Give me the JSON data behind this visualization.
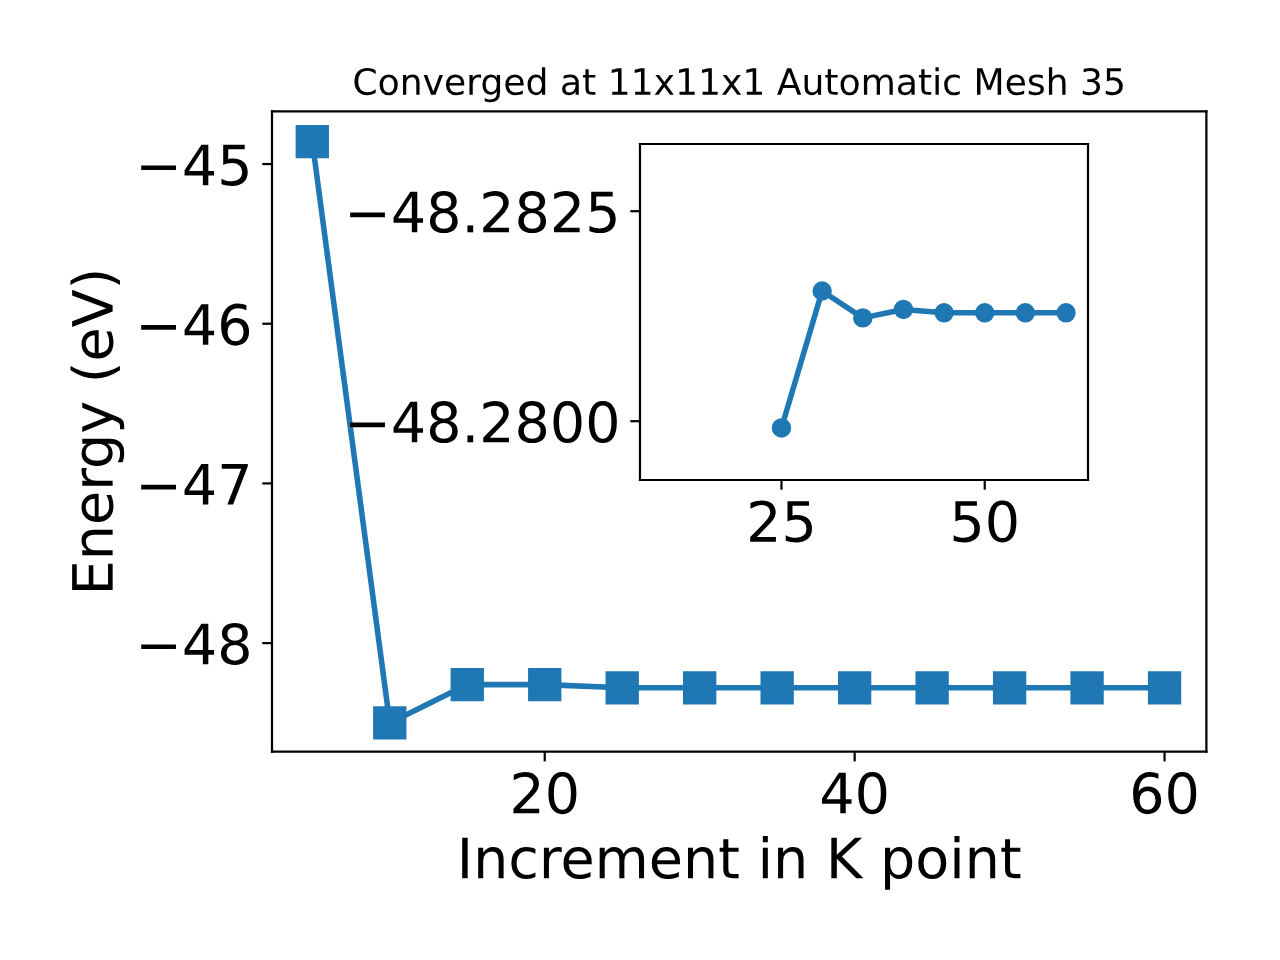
{
  "chart_data": [
    {
      "type": "line",
      "title": "Converged at 11x11x1 Automatic Mesh 35",
      "xlabel": "Increment in K point",
      "ylabel": "Energy (eV)",
      "x": [
        5,
        10,
        15,
        20,
        25,
        30,
        35,
        40,
        45,
        50,
        55,
        60
      ],
      "series": [
        {
          "color": "#1f77b4",
          "values": [
            -44.86,
            -48.5,
            -48.26,
            -48.26,
            -48.28,
            -48.28,
            -48.28,
            -48.28,
            -48.28,
            -48.28,
            -48.28,
            -48.28
          ]
        }
      ],
      "marker": "square",
      "line_style": "solid",
      "xlim": [
        2.4,
        62.7
      ],
      "ylim": [
        -48.68,
        -44.67
      ],
      "xticks": [
        20,
        40,
        60
      ],
      "yticks": [
        -48,
        -47,
        -46,
        -45
      ],
      "grid": false,
      "legend": false
    },
    {
      "type": "line",
      "x": [
        25,
        30,
        35,
        40,
        45,
        50,
        55,
        60
      ],
      "series": [
        {
          "color": "#1f77b4",
          "values": [
            -48.27992,
            -48.28155,
            -48.28123,
            -48.28133,
            -48.28129,
            -48.28129,
            -48.28129,
            -48.28129
          ]
        }
      ],
      "marker": "circle",
      "line_style": "solid",
      "xlim": [
        7.6,
        62.7
      ],
      "ylim": [
        -48.2793,
        -48.2833
      ],
      "xticks": [
        25,
        50
      ],
      "yticks": [
        {
          "value": -48.2825,
          "label": "−48.2825"
        },
        {
          "value": -48.28,
          "label": "−48.2800"
        }
      ],
      "grid": false,
      "legend": false
    }
  ]
}
